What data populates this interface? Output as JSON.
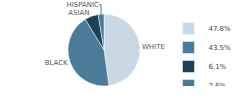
{
  "chart_data": {
    "type": "pie",
    "categories": [
      "WHITE",
      "BLACK",
      "ASIAN",
      "HISPANIC"
    ],
    "values": [
      47.8,
      43.5,
      6.1,
      2.6
    ],
    "value_labels": [
      "47.8%",
      "43.5%",
      "6.1%",
      "2.6%"
    ],
    "colors": [
      "#c8d8e4",
      "#4a7c9a",
      "#1e3f58",
      "#4a7c9a"
    ],
    "legend": "right"
  }
}
